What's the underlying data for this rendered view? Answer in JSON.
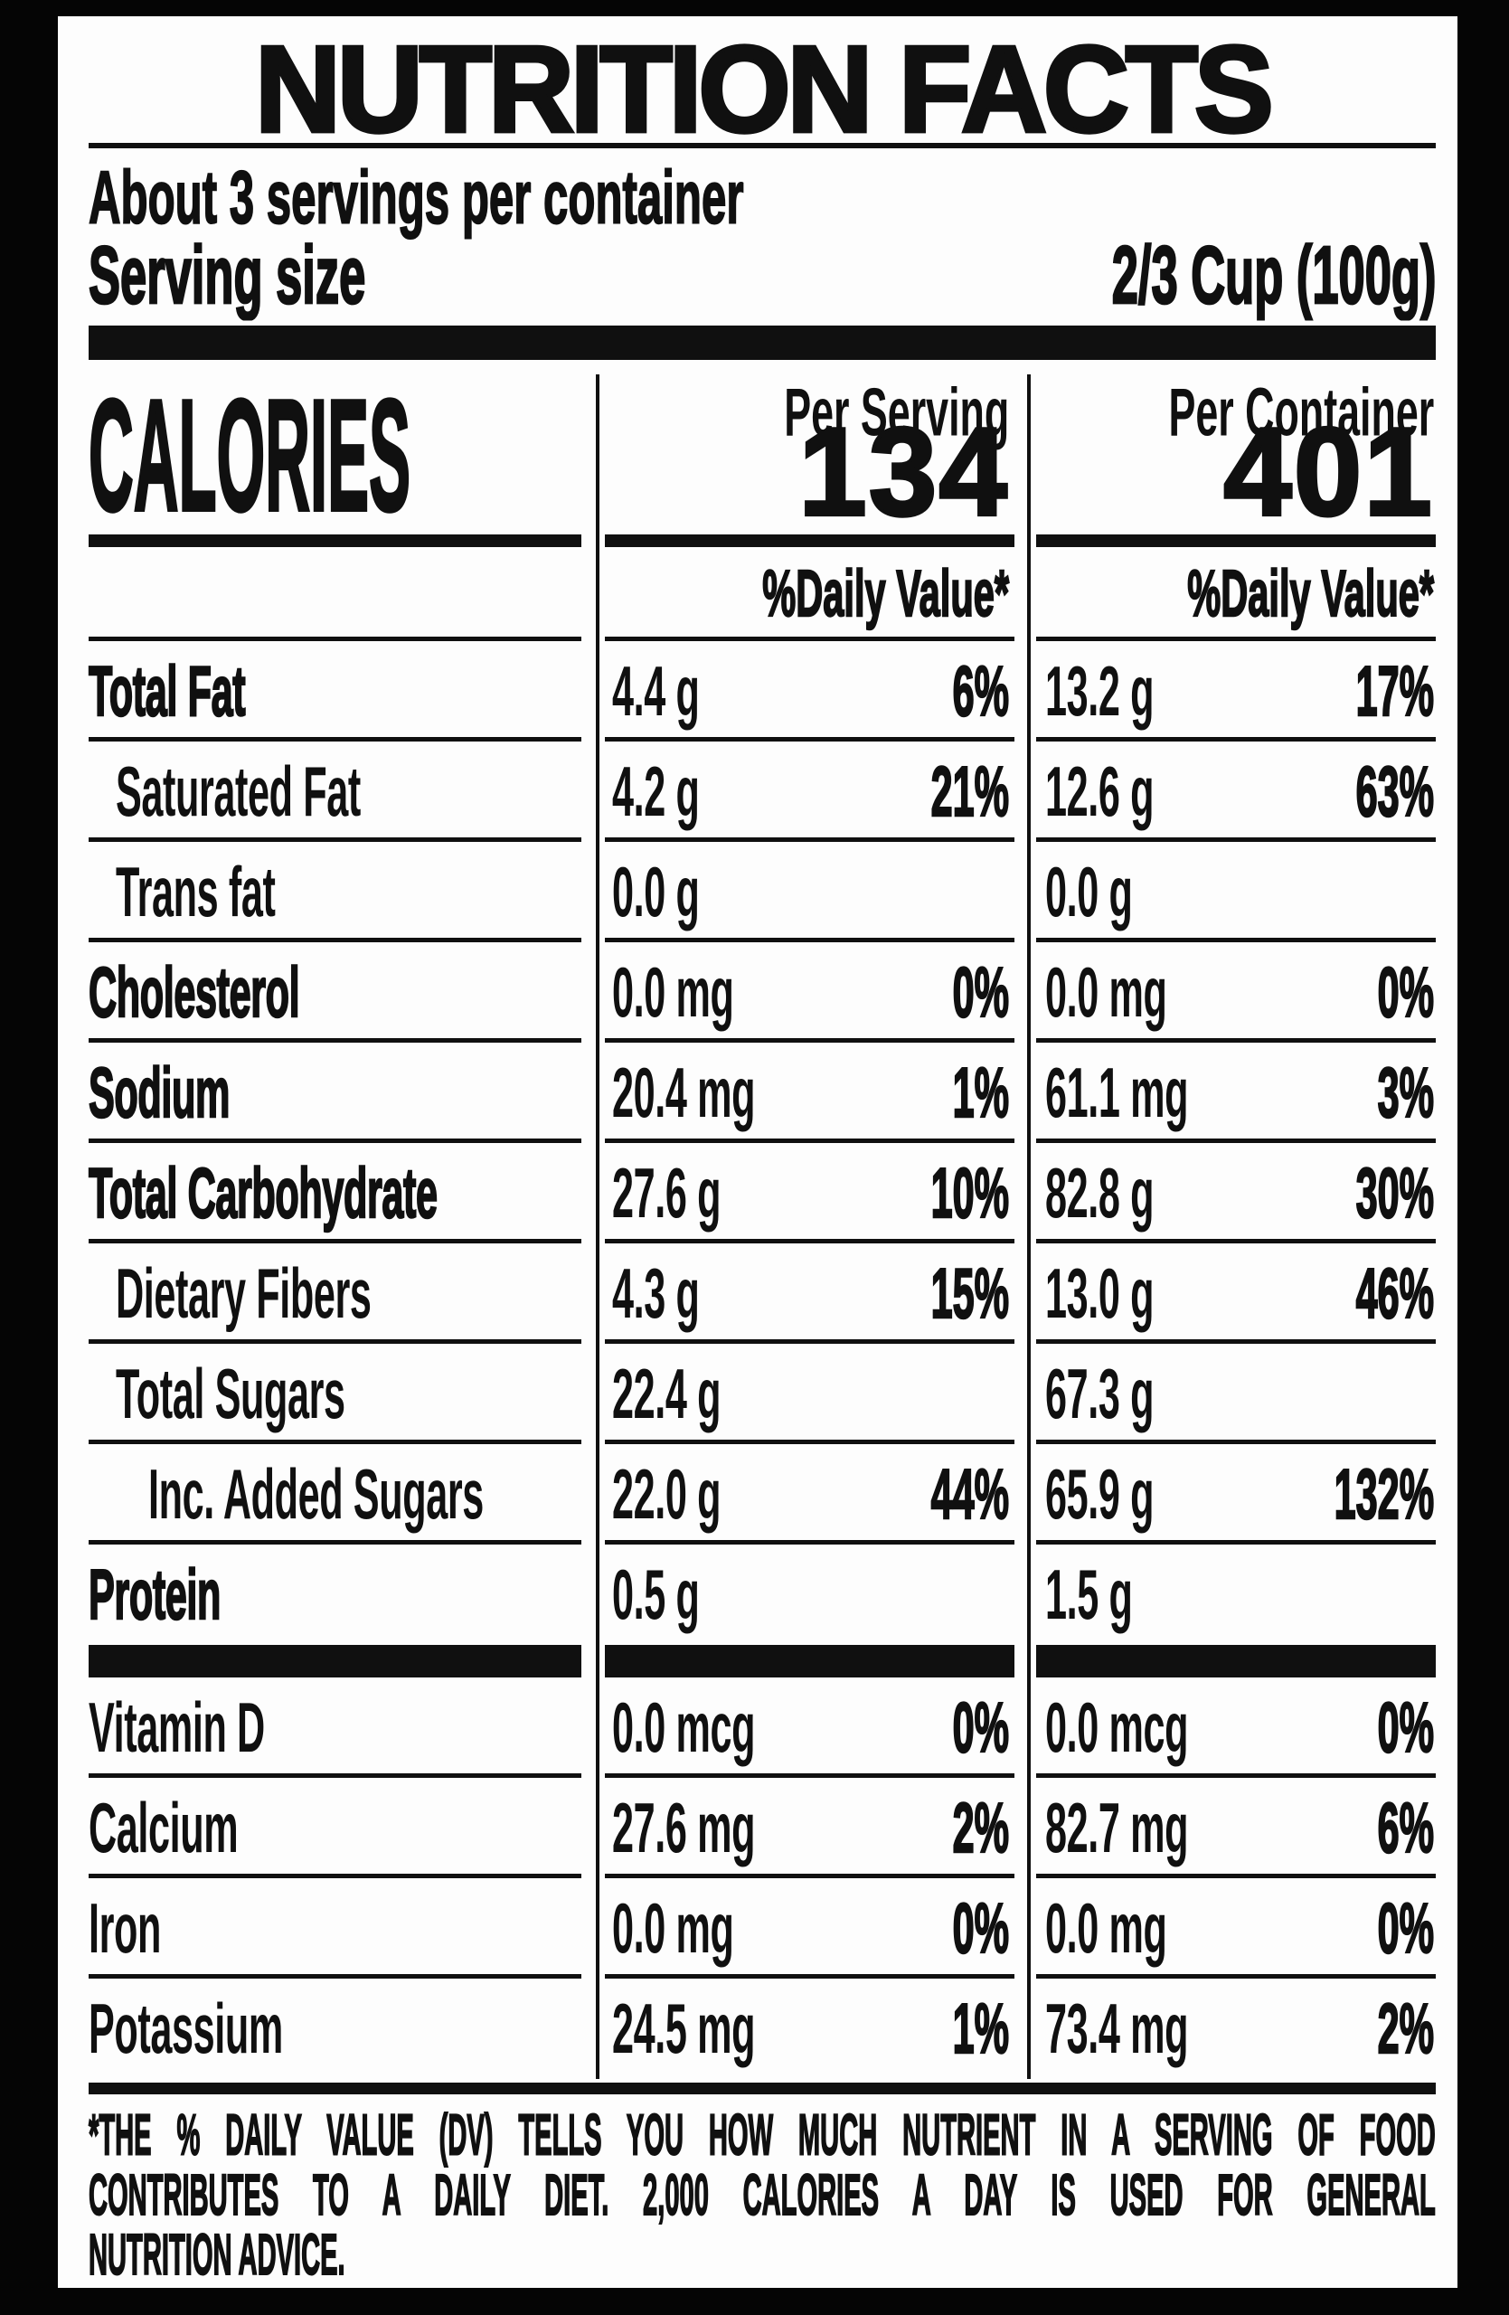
{
  "colors": {
    "background": "#050505",
    "label_background": "#fdfdfd",
    "ink": "#101010"
  },
  "header": {
    "title": "NUTRITION FACTS",
    "servings_per_container": "About 3 servings per container",
    "serving_size_label": "Serving size",
    "serving_size_value": "2/3 Cup (100g)"
  },
  "calories_section": {
    "label": "CALORIES",
    "columns": [
      {
        "header": "Per Serving",
        "calories": "134"
      },
      {
        "header": "Per Container",
        "calories": "401"
      }
    ],
    "daily_value_header": "%Daily Value*"
  },
  "table": {
    "rows": [
      {
        "label": "Total Fat",
        "indent": 0,
        "weight": "heavy",
        "per_serving": {
          "amount": "4.4 g",
          "dv": "6%"
        },
        "per_container": {
          "amount": "13.2 g",
          "dv": "17%"
        }
      },
      {
        "label": "Saturated Fat",
        "indent": 1,
        "weight": "regular",
        "per_serving": {
          "amount": "4.2 g",
          "dv": "21%"
        },
        "per_container": {
          "amount": "12.6 g",
          "dv": "63%"
        }
      },
      {
        "label": "Trans fat",
        "indent": 1,
        "weight": "regular",
        "per_serving": {
          "amount": "0.0 g",
          "dv": ""
        },
        "per_container": {
          "amount": "0.0 g",
          "dv": ""
        }
      },
      {
        "label": "Cholesterol",
        "indent": 0,
        "weight": "heavy",
        "per_serving": {
          "amount": "0.0 mg",
          "dv": "0%"
        },
        "per_container": {
          "amount": "0.0 mg",
          "dv": "0%"
        }
      },
      {
        "label": "Sodium",
        "indent": 0,
        "weight": "heavy",
        "per_serving": {
          "amount": "20.4 mg",
          "dv": "1%"
        },
        "per_container": {
          "amount": "61.1 mg",
          "dv": "3%"
        }
      },
      {
        "label": "Total Carbohydrate",
        "indent": 0,
        "weight": "heavy",
        "per_serving": {
          "amount": "27.6 g",
          "dv": "10%"
        },
        "per_container": {
          "amount": "82.8 g",
          "dv": "30%"
        }
      },
      {
        "label": "Dietary Fibers",
        "indent": 1,
        "weight": "regular",
        "per_serving": {
          "amount": "4.3 g",
          "dv": "15%"
        },
        "per_container": {
          "amount": "13.0 g",
          "dv": "46%"
        }
      },
      {
        "label": "Total Sugars",
        "indent": 1,
        "weight": "regular",
        "per_serving": {
          "amount": "22.4 g",
          "dv": ""
        },
        "per_container": {
          "amount": "67.3 g",
          "dv": ""
        }
      },
      {
        "label": "Inc. Added Sugars",
        "indent": 2,
        "weight": "regular",
        "per_serving": {
          "amount": "22.0 g",
          "dv": "44%"
        },
        "per_container": {
          "amount": "65.9 g",
          "dv": "132%"
        }
      },
      {
        "label": "Protein",
        "indent": 0,
        "weight": "heavy",
        "per_serving": {
          "amount": "0.5 g",
          "dv": ""
        },
        "per_container": {
          "amount": "1.5 g",
          "dv": ""
        }
      }
    ],
    "micronutrient_rows": [
      {
        "label": "Vitamin D",
        "indent": 0,
        "weight": "regular",
        "per_serving": {
          "amount": "0.0 mcg",
          "dv": "0%"
        },
        "per_container": {
          "amount": "0.0 mcg",
          "dv": "0%"
        }
      },
      {
        "label": "Calcium",
        "indent": 0,
        "weight": "regular",
        "per_serving": {
          "amount": "27.6 mg",
          "dv": "2%"
        },
        "per_container": {
          "amount": "82.7 mg",
          "dv": "6%"
        }
      },
      {
        "label": "Iron",
        "indent": 0,
        "weight": "regular",
        "per_serving": {
          "amount": "0.0 mg",
          "dv": "0%"
        },
        "per_container": {
          "amount": "0.0 mg",
          "dv": "0%"
        }
      },
      {
        "label": "Potassium",
        "indent": 0,
        "weight": "regular",
        "per_serving": {
          "amount": "24.5 mg",
          "dv": "1%"
        },
        "per_container": {
          "amount": "73.4 mg",
          "dv": "2%"
        }
      }
    ]
  },
  "footnote_lines": [
    "*THE % DAILY VALUE (DV) TELLS YOU HOW MUCH NUTRIENT IN A SERVING OF FOOD",
    "CONTRIBUTES TO A DAILY DIET. 2,000 CALORIES A DAY IS USED FOR GENERAL",
    "NUTRITION ADVICE."
  ]
}
